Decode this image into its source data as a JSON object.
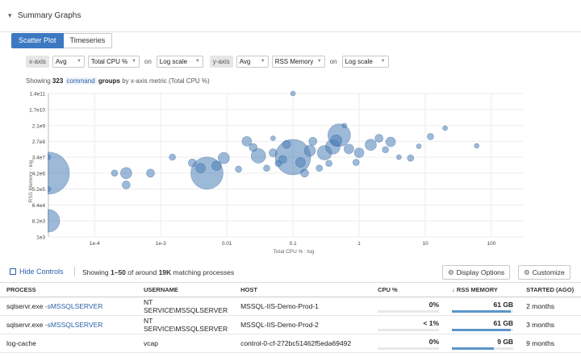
{
  "header": {
    "title": "Summary Graphs",
    "collapse_icon": "chevron-down-icon"
  },
  "tabs": [
    {
      "label": "Scatter Plot",
      "active": true
    },
    {
      "label": "Timeseries",
      "active": false
    }
  ],
  "controls": {
    "x_axis_label": "x-axis",
    "x_agg": "Avg",
    "x_metric": "Total CPU %",
    "x_on": "on",
    "x_scale": "Log scale",
    "y_axis_label": "y-axis",
    "y_agg": "Avg",
    "y_metric": "RSS Memory",
    "y_on": "on",
    "y_scale": "Log scale"
  },
  "summary": {
    "prefix": "Showing",
    "count": "323",
    "group_key": "command",
    "suffix_bold": "groups",
    "suffix": "by x-axis metric (Total CPU %)"
  },
  "chart_data": {
    "type": "scatter",
    "xlabel": "Total CPU % : log",
    "ylabel": "RSS Memory : log",
    "x_scale": "log",
    "y_scale": "log",
    "xlim": [
      2e-05,
      300
    ],
    "ylim": [
      1000,
      140000000000
    ],
    "x_ticks": [
      {
        "v": 0.0001,
        "label": "1e-4"
      },
      {
        "v": 0.001,
        "label": "1e-3"
      },
      {
        "v": 0.01,
        "label": "0.01"
      },
      {
        "v": 0.1,
        "label": "0.1"
      },
      {
        "v": 1,
        "label": "1"
      },
      {
        "v": 10,
        "label": "10"
      },
      {
        "v": 100,
        "label": "100"
      }
    ],
    "y_ticks": [
      {
        "v": 140000000000,
        "label": "1.4e11"
      },
      {
        "v": 17000000000,
        "label": "1.7e10"
      },
      {
        "v": 2100000000,
        "label": "2.1e9"
      },
      {
        "v": 270000000,
        "label": "2.7e8"
      },
      {
        "v": 34000000,
        "label": "3.4e7"
      },
      {
        "v": 4200000,
        "label": "4.2e6"
      },
      {
        "v": 520000,
        "label": "5.2e5"
      },
      {
        "v": 64000,
        "label": "6.4e4"
      },
      {
        "v": 8200,
        "label": "8.2e3"
      },
      {
        "v": 1000,
        "label": "1e3"
      }
    ],
    "grid": true,
    "points": [
      {
        "x": 2e-05,
        "y": 4200000,
        "r": 26
      },
      {
        "x": 2e-05,
        "y": 8200,
        "r": 14
      },
      {
        "x": 2e-05,
        "y": 34000000,
        "r": 3
      },
      {
        "x": 2e-05,
        "y": 520000,
        "r": 3
      },
      {
        "x": 0.0003,
        "y": 4200000,
        "r": 7
      },
      {
        "x": 0.0002,
        "y": 4200000,
        "r": 4
      },
      {
        "x": 0.0003,
        "y": 900000,
        "r": 5
      },
      {
        "x": 0.0007,
        "y": 4200000,
        "r": 5
      },
      {
        "x": 0.0015,
        "y": 34000000,
        "r": 4
      },
      {
        "x": 0.003,
        "y": 16000000,
        "r": 5
      },
      {
        "x": 0.005,
        "y": 4200000,
        "r": 20
      },
      {
        "x": 0.007,
        "y": 11000000,
        "r": 6
      },
      {
        "x": 0.009,
        "y": 30000000,
        "r": 7
      },
      {
        "x": 0.004,
        "y": 8000000,
        "r": 6
      },
      {
        "x": 0.02,
        "y": 270000000,
        "r": 6
      },
      {
        "x": 0.025,
        "y": 120000000,
        "r": 5
      },
      {
        "x": 0.03,
        "y": 40000000,
        "r": 9
      },
      {
        "x": 0.05,
        "y": 60000000,
        "r": 5
      },
      {
        "x": 0.04,
        "y": 8000000,
        "r": 4
      },
      {
        "x": 0.1,
        "y": 34000000,
        "r": 22
      },
      {
        "x": 0.13,
        "y": 17000000,
        "r": 6
      },
      {
        "x": 0.08,
        "y": 180000000,
        "r": 5
      },
      {
        "x": 0.15,
        "y": 4200000,
        "r": 5
      },
      {
        "x": 0.2,
        "y": 270000000,
        "r": 5
      },
      {
        "x": 0.25,
        "y": 8000000,
        "r": 4
      },
      {
        "x": 0.3,
        "y": 60000000,
        "r": 9
      },
      {
        "x": 0.4,
        "y": 130000000,
        "r": 9
      },
      {
        "x": 0.5,
        "y": 600000000,
        "r": 14
      },
      {
        "x": 0.7,
        "y": 100000000,
        "r": 6
      },
      {
        "x": 1,
        "y": 60000000,
        "r": 6
      },
      {
        "x": 1.5,
        "y": 170000000,
        "r": 7
      },
      {
        "x": 2,
        "y": 400000000,
        "r": 5
      },
      {
        "x": 3,
        "y": 250000000,
        "r": 6
      },
      {
        "x": 0.1,
        "y": 140000000000,
        "r": 3
      },
      {
        "x": 4,
        "y": 34000000,
        "r": 3
      },
      {
        "x": 8,
        "y": 140000000,
        "r": 3
      },
      {
        "x": 20,
        "y": 1500000000,
        "r": 3
      },
      {
        "x": 60,
        "y": 150000000,
        "r": 3
      },
      {
        "x": 0.6,
        "y": 2100000000,
        "r": 3
      },
      {
        "x": 0.05,
        "y": 400000000,
        "r": 3
      },
      {
        "x": 0.015,
        "y": 7000000,
        "r": 4
      },
      {
        "x": 0.06,
        "y": 15000000,
        "r": 4
      },
      {
        "x": 0.9,
        "y": 17000000,
        "r": 4
      },
      {
        "x": 6,
        "y": 30000000,
        "r": 4
      },
      {
        "x": 12,
        "y": 500000000,
        "r": 4
      },
      {
        "x": 0.35,
        "y": 15000000,
        "r": 4
      },
      {
        "x": 0.18,
        "y": 80000000,
        "r": 7
      },
      {
        "x": 0.45,
        "y": 300000000,
        "r": 7
      },
      {
        "x": 2.5,
        "y": 90000000,
        "r": 4
      },
      {
        "x": 0.07,
        "y": 25000000,
        "r": 5
      }
    ]
  },
  "toolbar": {
    "hide_controls": "Hide Controls",
    "match_prefix": "Showing",
    "match_range": "1–50",
    "match_mid": "of around",
    "match_count": "19K",
    "match_suffix": "matching processes",
    "display_options": "Display Options",
    "customize": "Customize"
  },
  "table": {
    "columns": {
      "process": "PROCESS",
      "username": "USERNAME",
      "host": "HOST",
      "cpu": "CPU %",
      "rss": "RSS MEMORY",
      "started": "STARTED (AGO)",
      "sort_icon": "arrow-down-icon"
    },
    "rows": [
      {
        "process": "sqlservr.exe",
        "flag": "-sMSSQLSERVER",
        "username": "NT SERVICE\\MSSQLSERVER",
        "host": "MSSQL-IIS-Demo-Prod-1",
        "cpu": "0%",
        "cpu_frac": 0.0,
        "rss": "61 GB",
        "rss_frac": 0.96,
        "started": "2 months"
      },
      {
        "process": "sqlservr.exe",
        "flag": "-sMSSQLSERVER",
        "username": "NT SERVICE\\MSSQLSERVER",
        "host": "MSSQL-IIS-Demo-Prod-2",
        "cpu": "< 1%",
        "cpu_frac": 0.0,
        "rss": "61 GB",
        "rss_frac": 0.96,
        "started": "3 months"
      },
      {
        "process": "log-cache",
        "flag": "",
        "username": "vcap",
        "host": "control-0-cf-272bc51462f5eda69492",
        "cpu": "0%",
        "cpu_frac": 0.0,
        "rss": "9 GB",
        "rss_frac": 0.68,
        "started": "9 months"
      }
    ]
  },
  "colors": {
    "accent": "#3d79c2",
    "bubble": "#4d7fb8",
    "link": "#2b5fa8",
    "bar": "#5b95c9"
  }
}
